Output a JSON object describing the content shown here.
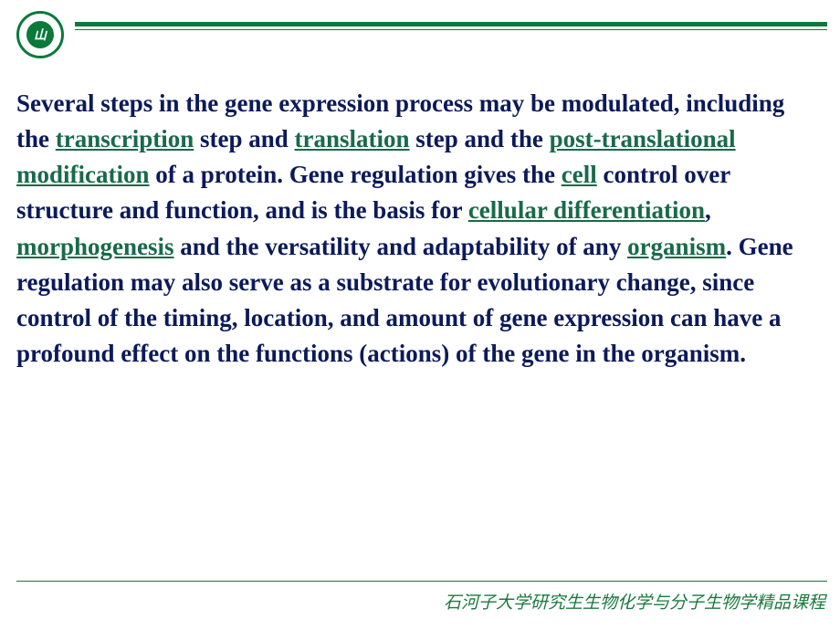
{
  "colors": {
    "page_bg": "#ffffff",
    "text_main": "#0b1a5a",
    "link": "#186a4a",
    "rule": "#0a7a3a",
    "footer_text": "#1a7a3e",
    "logo_ring": "#0a7a3a",
    "logo_inner": "#0a7a3a",
    "logo_glyph": "#ffffff"
  },
  "typography": {
    "body_font": "Times New Roman",
    "body_fontsize_pt": 20,
    "body_weight": "bold",
    "footer_font": "KaiTi",
    "footer_fontsize_pt": 14
  },
  "logo": {
    "name": "university-seal-icon",
    "glyph": "山"
  },
  "paragraph": {
    "segments": [
      {
        "t": "Several steps in the gene expression process may be modulated, including the ",
        "link": false
      },
      {
        "t": "transcription",
        "link": true
      },
      {
        "t": " step and ",
        "link": false
      },
      {
        "t": "translation",
        "link": true
      },
      {
        "t": " step and the ",
        "link": false
      },
      {
        "t": "post-translational modification",
        "link": true
      },
      {
        "t": " of a protein. Gene regulation gives the ",
        "link": false
      },
      {
        "t": "cell",
        "link": true
      },
      {
        "t": " control over structure and function, and is the basis for ",
        "link": false
      },
      {
        "t": "cellular differentiation",
        "link": true
      },
      {
        "t": ", ",
        "link": false
      },
      {
        "t": "morphogenesis",
        "link": true
      },
      {
        "t": " and the versatility and adaptability of any ",
        "link": false
      },
      {
        "t": "organism",
        "link": true
      },
      {
        "t": ". Gene regulation may also serve as a substrate for evolutionary change, since control of the timing, location, and amount of gene expression can have a profound effect on the functions (actions) of the gene in the organism.",
        "link": false
      }
    ]
  },
  "footer": {
    "text": "石河子大学研究生生物化学与分子生物学精品课程"
  }
}
